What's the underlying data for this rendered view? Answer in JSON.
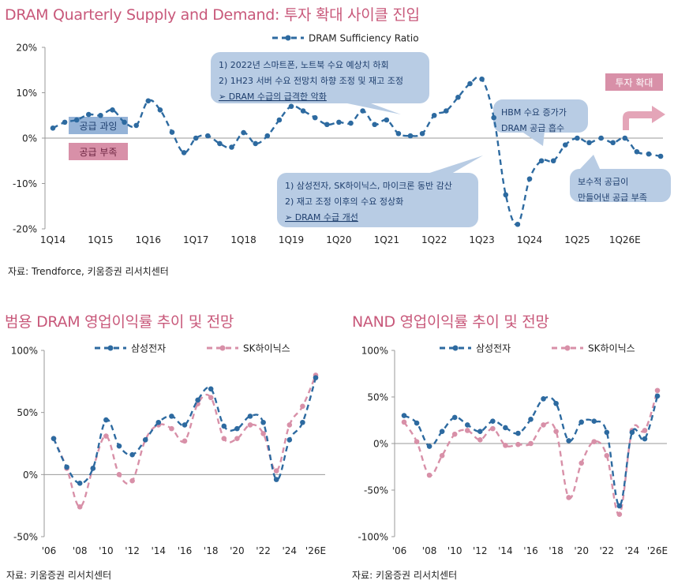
{
  "titles": {
    "main": "DRAM Quarterly Supply and Demand: 투자 확대 사이클 진입",
    "left": "범용 DRAM 영업이익률 추이 및 전망",
    "right": "NAND 영업이익률 추이 및 전망"
  },
  "sources": {
    "main": "자료: Trendforce, 키움증권 리서치센터",
    "left": "자료: 키움증권 리서치센터",
    "right": "자료: 키움증권 리서치센터"
  },
  "colors": {
    "samsung": "#2d6aa0",
    "sk": "#d890a8",
    "callout": "#b8cce4",
    "oversupply_box": "#95b3d7",
    "shortage_box": "#d890a8",
    "title": "#c8587a"
  },
  "chart_data": [
    {
      "id": "main",
      "type": "line",
      "title": "DRAM Quarterly Supply and Demand: 투자 확대 사이클 진입",
      "legend": [
        "DRAM Sufficiency Ratio"
      ],
      "ylim": [
        -20,
        20
      ],
      "yticks": [
        20,
        10,
        0,
        -10,
        -20
      ],
      "ytick_labels": [
        "20%",
        "10%",
        "0%",
        "-10%",
        "-20%"
      ],
      "xtick_labels": [
        "1Q14",
        "1Q15",
        "1Q16",
        "1Q17",
        "1Q18",
        "1Q19",
        "1Q20",
        "1Q21",
        "1Q22",
        "1Q23",
        "1Q24",
        "1Q25",
        "1Q26E"
      ],
      "series": [
        {
          "name": "DRAM Sufficiency Ratio",
          "values": [
            2.2,
            3.5,
            4,
            5.2,
            5,
            6.2,
            3.5,
            2.8,
            8.2,
            6.2,
            1.3,
            -3.2,
            0,
            0.5,
            -1.2,
            -2,
            1.2,
            -1.2,
            0.5,
            4,
            7,
            6,
            4.5,
            3,
            3.5,
            3.3,
            6,
            3,
            4,
            1,
            0.5,
            1,
            5,
            6,
            9,
            12,
            13,
            4.5,
            -12.5,
            -19,
            -9,
            -5,
            -5,
            -1.5,
            0,
            -1,
            0,
            -1,
            0,
            -3,
            -3.5,
            -4
          ]
        }
      ],
      "annotations": {
        "oversupply": "공급 과잉",
        "shortage": "공급 부족",
        "callout1": [
          "1) 2022년 스마트폰, 노트북 수요 예상치 하회",
          "2) 1H23 서버 수요 전망치 하향 조정 및 재고 조정",
          "➢ DRAM 수급의 급격한 악화"
        ],
        "callout2": [
          "1) 삼성전자, SK하이닉스, 마이크론 동반 감산",
          "2) 재고 조정 이후의 수요 정상화",
          "➢ DRAM 수급 개선"
        ],
        "callout3": [
          "HBM 수요 증가가",
          "DRAM 공급 흡수"
        ],
        "callout4": [
          "보수적 공급이",
          "만들어낸 공급 부족"
        ],
        "invest": "투자 확대"
      }
    },
    {
      "id": "dram_margin",
      "type": "line",
      "title": "범용 DRAM 영업이익률 추이 및 전망",
      "ylim": [
        -50,
        100
      ],
      "yticks": [
        100,
        50,
        0,
        -50
      ],
      "ytick_labels": [
        "100%",
        "50%",
        "0%",
        "-50%"
      ],
      "xtick_labels": [
        "'06",
        "'08",
        "'10",
        "'12",
        "'14",
        "'16",
        "'18",
        "'20",
        "'22",
        "'24",
        "'26E"
      ],
      "series": [
        {
          "name": "삼성전자",
          "values": [
            29,
            6,
            -7,
            5,
            44,
            23,
            16,
            28,
            42,
            47,
            40,
            60,
            69,
            39,
            37,
            47,
            42,
            -4,
            28,
            42,
            78
          ]
        },
        {
          "name": "SK하이닉스",
          "values": [
            29,
            5,
            -26,
            5,
            31,
            0,
            -5,
            28,
            40,
            37,
            27,
            57,
            62,
            29,
            29,
            40,
            33,
            3,
            40,
            55,
            80
          ]
        }
      ]
    },
    {
      "id": "nand_margin",
      "type": "line",
      "title": "NAND 영업이익률 추이 및 전망",
      "ylim": [
        -100,
        100
      ],
      "yticks": [
        100,
        50,
        0,
        -50,
        -100
      ],
      "ytick_labels": [
        "100%",
        "50%",
        "0%",
        "-50%",
        "-100%"
      ],
      "xtick_labels": [
        "'06",
        "'08",
        "'10",
        "'12",
        "'14",
        "'16",
        "'18",
        "'20",
        "'22",
        "'24",
        "'26E"
      ],
      "series": [
        {
          "name": "삼성전자",
          "values": [
            30,
            22,
            -3,
            13,
            28,
            20,
            13,
            24,
            17,
            11,
            26,
            48,
            43,
            3,
            23,
            24,
            12,
            -67,
            12,
            5,
            51
          ]
        },
        {
          "name": "SK하이닉스",
          "values": [
            23,
            2,
            -34,
            -13,
            10,
            14,
            4,
            16,
            -2,
            -1,
            0,
            20,
            13,
            -58,
            -21,
            2,
            -13,
            -76,
            14,
            14,
            57
          ]
        }
      ]
    }
  ]
}
